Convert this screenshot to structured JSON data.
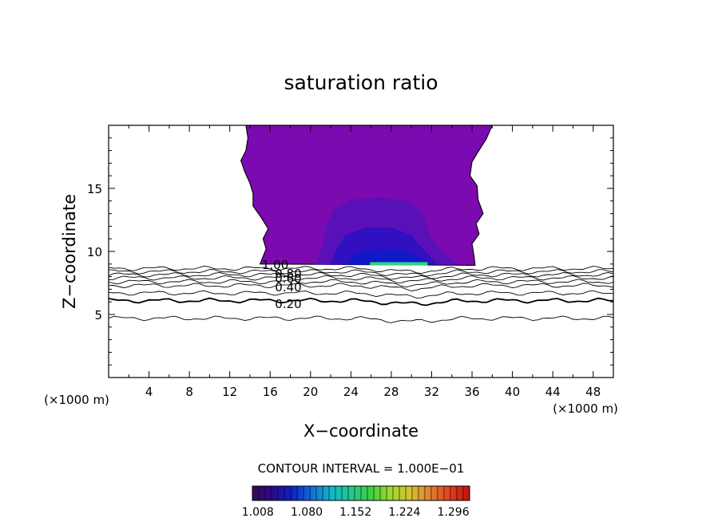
{
  "chart_data": {
    "type": "contour",
    "title": "saturation ratio",
    "xlabel": "X−coordinate",
    "ylabel": "Z−coordinate",
    "x_unit_left": "(×1000 m)",
    "x_unit_right": "(×1000 m)",
    "xlim": [
      0,
      50
    ],
    "ylim": [
      0,
      20
    ],
    "x_ticks": [
      4,
      8,
      12,
      16,
      20,
      24,
      28,
      32,
      36,
      40,
      44,
      48
    ],
    "y_ticks": [
      5,
      10,
      15
    ],
    "contour_interval_text": "CONTOUR INTERVAL = 1.000E−01",
    "contour_labels": [
      {
        "text": "0.20",
        "x": 17.8,
        "z": 5.9
      },
      {
        "text": "0.40",
        "x": 17.8,
        "z": 7.2
      },
      {
        "text": "0.60",
        "x": 17.8,
        "z": 7.9
      },
      {
        "text": "0.80",
        "x": 17.8,
        "z": 8.3
      },
      {
        "text": "1.00",
        "x": 16.5,
        "z": 9.0
      }
    ],
    "contour_levels_z": [
      {
        "level": 0.1,
        "z": 4.7
      },
      {
        "level": 0.2,
        "z": 6.1
      },
      {
        "level": 0.3,
        "z": 6.7
      },
      {
        "level": 0.4,
        "z": 7.3
      },
      {
        "level": 0.5,
        "z": 7.6
      },
      {
        "level": 0.6,
        "z": 7.9
      },
      {
        "level": 0.7,
        "z": 8.15
      },
      {
        "level": 0.8,
        "z": 8.4
      },
      {
        "level": 0.9,
        "z": 8.65
      }
    ],
    "colorbar": {
      "ticks": [
        "1.008",
        "1.080",
        "1.152",
        "1.224",
        "1.296"
      ],
      "range": [
        1.0,
        1.32
      ],
      "colors": [
        "#3a0a55",
        "#2a0a88",
        "#1020c8",
        "#1070d8",
        "#10b8c8",
        "#20c890",
        "#40d040",
        "#a0d830",
        "#d8c030",
        "#e08030",
        "#e04020",
        "#c01010"
      ]
    },
    "shaded_region_colors": {
      "outer": "#7b0ab0",
      "mid": "#5a10b8",
      "inner": "#3010c0",
      "core": "#1018c8",
      "peak": "#30d870"
    }
  }
}
